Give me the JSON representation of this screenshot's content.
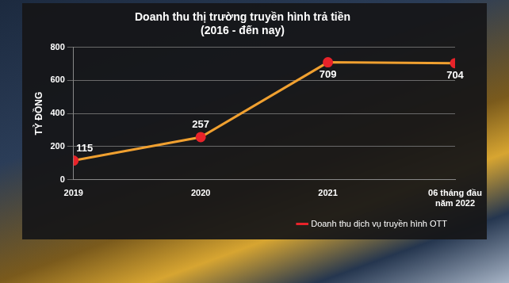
{
  "chart_data": {
    "type": "line",
    "title": "Doanh thu thị trường truyền hình trả tiền",
    "subtitle": "(2016 - đến nay)",
    "y_label": "TỶ ĐỒNG",
    "categories": [
      "2019",
      "2020",
      "2021",
      "06 tháng đầu\nnăm 2022"
    ],
    "series": [
      {
        "name": "Doanh thu dịch vụ truyền hình OTT",
        "color": "#f0a030",
        "marker": "circle",
        "values": [
          115,
          257,
          709,
          704
        ]
      }
    ],
    "ylim": [
      0,
      800
    ],
    "yticks": [
      0,
      200,
      400,
      600,
      800
    ],
    "grid": true,
    "legend": "bottom",
    "data_labels": true
  }
}
